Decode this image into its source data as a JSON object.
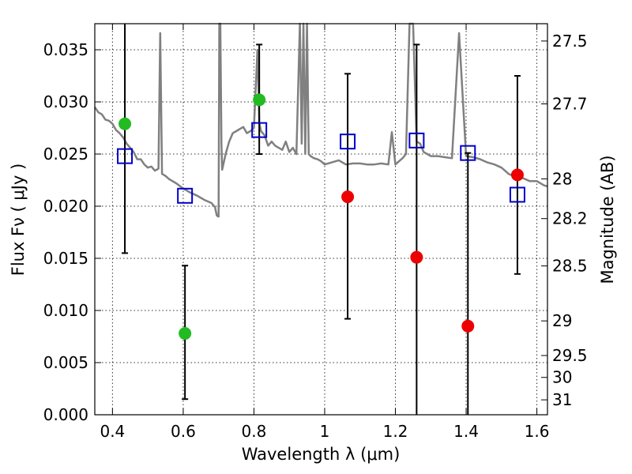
{
  "chart_data": {
    "type": "scatter",
    "xlabel": "Wavelength  λ (μm)",
    "ylabel": "Flux  Fν  ( μJy )",
    "y2label": "Magnitude (AB)",
    "xlim": [
      0.35,
      1.63
    ],
    "ylim": [
      0.0,
      0.0375
    ],
    "grid": true,
    "x_ticks": [
      0.4,
      0.6,
      0.8,
      1.0,
      1.2,
      1.4,
      1.6
    ],
    "x_tick_labels": [
      "0.4",
      "0.6",
      "0.8",
      "1",
      "1.2",
      "1.4",
      "1.6"
    ],
    "y_ticks": [
      0.0,
      0.005,
      0.01,
      0.015,
      0.02,
      0.025,
      0.03,
      0.035
    ],
    "y_tick_labels": [
      "0.000",
      "0.005",
      "0.010",
      "0.015",
      "0.020",
      "0.025",
      "0.030",
      "0.035"
    ],
    "y2_ticks": [
      {
        "label": "27.5",
        "flux": 0.03584
      },
      {
        "label": "27.7",
        "flux": 0.02981
      },
      {
        "label": "28",
        "flux": 0.02262
      },
      {
        "label": "28.2",
        "flux": 0.01881
      },
      {
        "label": "28.5",
        "flux": 0.01427
      },
      {
        "label": "29",
        "flux": 0.009
      },
      {
        "label": "29.5",
        "flux": 0.00568
      },
      {
        "label": "30",
        "flux": 0.00358
      },
      {
        "label": "31",
        "flux": 0.00143
      }
    ],
    "series": [
      {
        "kind": "line",
        "color": "#808080",
        "x": [
          0.35,
          0.36,
          0.37,
          0.38,
          0.39,
          0.4,
          0.41,
          0.42,
          0.43,
          0.44,
          0.45,
          0.46,
          0.47,
          0.48,
          0.49,
          0.5,
          0.51,
          0.52,
          0.53,
          0.535,
          0.54,
          0.55,
          0.56,
          0.58,
          0.6,
          0.62,
          0.64,
          0.66,
          0.68,
          0.69,
          0.695,
          0.7,
          0.702,
          0.705,
          0.708,
          0.71,
          0.72,
          0.73,
          0.74,
          0.75,
          0.76,
          0.77,
          0.78,
          0.79,
          0.8,
          0.81,
          0.815,
          0.82,
          0.83,
          0.84,
          0.85,
          0.86,
          0.87,
          0.88,
          0.89,
          0.9,
          0.91,
          0.92,
          0.93,
          0.935,
          0.94,
          0.945,
          0.95,
          0.955,
          0.96,
          0.97,
          0.98,
          0.99,
          1.0,
          1.02,
          1.04,
          1.06,
          1.08,
          1.1,
          1.12,
          1.14,
          1.16,
          1.18,
          1.19,
          1.2,
          1.21,
          1.22,
          1.23,
          1.24,
          1.25,
          1.26,
          1.27,
          1.28,
          1.29,
          1.3,
          1.32,
          1.34,
          1.36,
          1.38,
          1.4,
          1.42,
          1.44,
          1.46,
          1.48,
          1.5,
          1.52,
          1.54,
          1.56,
          1.58,
          1.6,
          1.62,
          1.63
        ],
        "y": [
          0.0295,
          0.029,
          0.0288,
          0.0283,
          0.0282,
          0.0279,
          0.0273,
          0.027,
          0.0266,
          0.026,
          0.0256,
          0.0252,
          0.0245,
          0.0245,
          0.024,
          0.0237,
          0.0238,
          0.0234,
          0.0236,
          0.0366,
          0.0231,
          0.0229,
          0.0226,
          0.0222,
          0.0217,
          0.0213,
          0.021,
          0.0206,
          0.0203,
          0.0199,
          0.0191,
          0.019,
          0.0375,
          0.0375,
          0.026,
          0.0235,
          0.025,
          0.0262,
          0.027,
          0.0272,
          0.0274,
          0.0276,
          0.027,
          0.0272,
          0.0275,
          0.035,
          0.028,
          0.0272,
          0.0268,
          0.0258,
          0.0262,
          0.0258,
          0.0256,
          0.0254,
          0.0262,
          0.0252,
          0.0256,
          0.025,
          0.0375,
          0.026,
          0.0375,
          0.025,
          0.0375,
          0.025,
          0.0248,
          0.0246,
          0.0245,
          0.0243,
          0.024,
          0.0242,
          0.0244,
          0.024,
          0.0241,
          0.0241,
          0.024,
          0.024,
          0.0241,
          0.024,
          0.0271,
          0.024,
          0.0243,
          0.0246,
          0.025,
          0.0375,
          0.0375,
          0.0262,
          0.026,
          0.0252,
          0.025,
          0.0248,
          0.0248,
          0.0247,
          0.0246,
          0.0366,
          0.0248,
          0.0247,
          0.0245,
          0.0242,
          0.024,
          0.0237,
          0.0231,
          0.0228,
          0.0227,
          0.0224,
          0.0224,
          0.022,
          0.0219
        ]
      },
      {
        "kind": "squares",
        "color": "#0000cc",
        "x": [
          0.435,
          0.605,
          0.815,
          1.065,
          1.26,
          1.405,
          1.545
        ],
        "y": [
          0.0248,
          0.021,
          0.0273,
          0.0262,
          0.0263,
          0.0251,
          0.0211
        ]
      },
      {
        "kind": "points",
        "color": "#22bb22",
        "x": [
          0.435,
          0.605,
          0.815
        ],
        "y": [
          0.0279,
          0.0078,
          0.0302
        ],
        "err_low": [
          0.0155,
          0.0015,
          0.025
        ],
        "err_high": [
          0.0375,
          0.0143,
          0.0355
        ]
      },
      {
        "kind": "points",
        "color": "#ee0000",
        "x": [
          1.065,
          1.26,
          1.405,
          1.545
        ],
        "y": [
          0.0209,
          0.0151,
          0.0085,
          0.023
        ],
        "err_low": [
          0.0092,
          0.0,
          0.0,
          0.0135
        ],
        "err_high": [
          0.0327,
          0.0355,
          0.0251,
          0.0325
        ]
      }
    ]
  }
}
